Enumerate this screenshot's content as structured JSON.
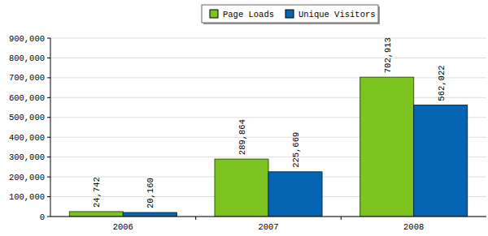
{
  "chart_data": {
    "type": "bar",
    "categories": [
      "2006",
      "2007",
      "2008"
    ],
    "series": [
      {
        "name": "Page Loads",
        "color": "#7dc31f",
        "values": [
          24742,
          289864,
          702913
        ],
        "value_labels": [
          "24,742",
          "289,864",
          "702,913"
        ]
      },
      {
        "name": "Unique Visitors",
        "color": "#0565b2",
        "values": [
          20160,
          225669,
          562022
        ],
        "value_labels": [
          "20,160",
          "225,669",
          "562,022"
        ]
      }
    ],
    "ylim": [
      0,
      900000
    ],
    "yticks": [
      0,
      {
        "value": 100000,
        "label": "100,000"
      },
      {
        "value": 200000,
        "label": "200,000"
      },
      {
        "value": 300000,
        "label": "300,000"
      },
      {
        "value": 400000,
        "label": "400,000"
      },
      {
        "value": 500000,
        "label": "500,000"
      },
      {
        "value": 600000,
        "label": "600,000"
      },
      {
        "value": 700000,
        "label": "700,000"
      },
      {
        "value": 800000,
        "label": "800,000"
      },
      {
        "value": 900000,
        "label": "900,000"
      }
    ],
    "grid": true,
    "legend": "top",
    "data_labels": true
  }
}
